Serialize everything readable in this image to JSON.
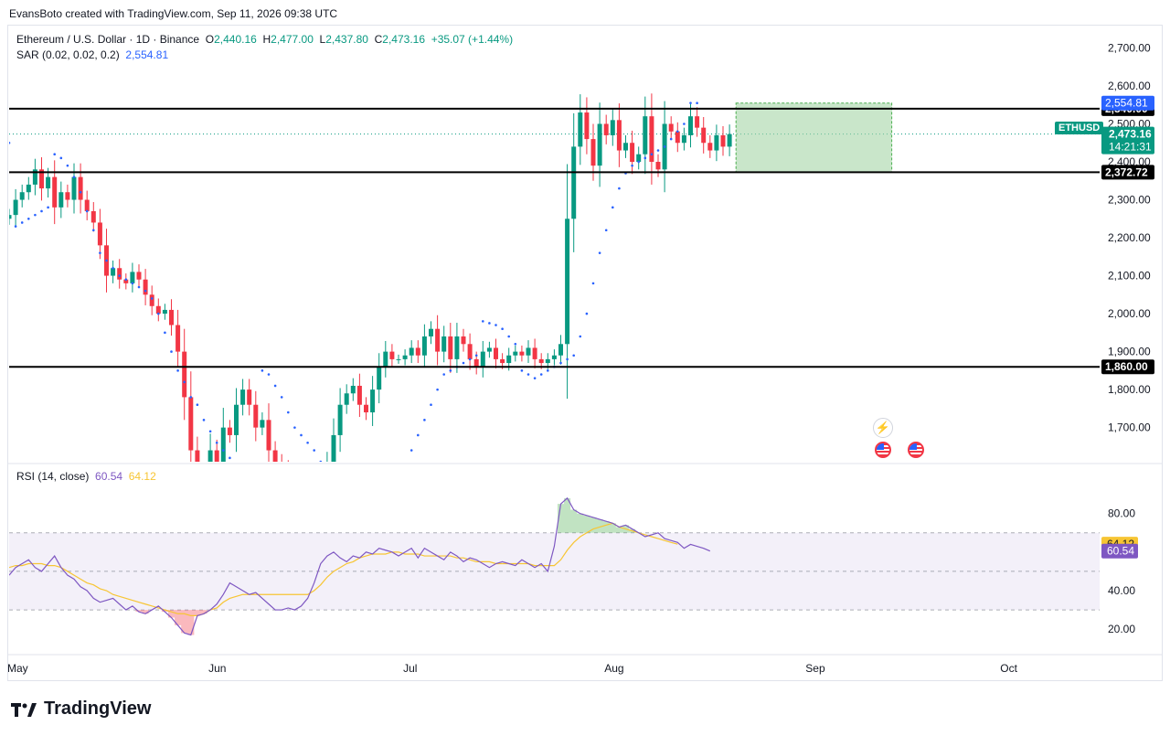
{
  "credit": "EvansBoto created with TradingView.com, Sep 11, 2026 09:38 UTC",
  "legend": {
    "symbol": "Ethereum / U.S. Dollar · 1D · Binance",
    "o_label": "O",
    "o": "2,440.16",
    "h_label": "H",
    "h": "2,477.00",
    "l_label": "L",
    "l": "2,437.80",
    "c_label": "C",
    "c": "2,473.16",
    "change": "+35.07 (+1.44%)",
    "sar_label": "SAR (0.02, 0.02, 0.2)",
    "sar_value": "2,554.81"
  },
  "rsi_legend": {
    "label": "RSI (14, close)",
    "rsi": "60.54",
    "ma": "64.12"
  },
  "ticker": "ETHUSD",
  "countdown": "14:21:31",
  "brand": "TradingView",
  "colors": {
    "up": "#089981",
    "down": "#f23645",
    "sar": "#2962ff",
    "rsi": "#7e57c2",
    "rsi_ma": "#f7c533",
    "zone": "#a5d6a7"
  },
  "chart_data": [
    {
      "type": "candlestick",
      "title": "Ethereum / U.S. Dollar · 1D · Binance",
      "ylim": [
        1610,
        2730
      ],
      "y_ticks": [
        "2,700.00",
        "2,600.00",
        "2,500.00",
        "2,400.00",
        "2,300.00",
        "2,200.00",
        "2,100.00",
        "2,000.00",
        "1,900.00",
        "1,800.00",
        "1,700.00"
      ],
      "y_tick_values": [
        2700,
        2600,
        2500,
        2400,
        2300,
        2200,
        2100,
        2000,
        1900,
        1800,
        1700
      ],
      "x_ticks": [
        "May",
        "Jun",
        "Jul",
        "Aug",
        "Sep",
        "Oct"
      ],
      "x_tick_days": [
        0,
        31,
        61,
        92,
        123,
        153
      ],
      "horizontal_lines": [
        {
          "value": 2540,
          "label": "2,540.00"
        },
        {
          "value": 2372.72,
          "label": "2,372.72"
        },
        {
          "value": 1860,
          "label": "1,860.00"
        }
      ],
      "price_labels": [
        {
          "value": 2554.81,
          "label": "2,554.81",
          "kind": "sar"
        },
        {
          "value": 2473.16,
          "label": "2,473.16",
          "kind": "last"
        }
      ],
      "zone": {
        "from_day": 112,
        "to_day": 136,
        "low": 2372.72,
        "high": 2554.81
      },
      "closes": [
        2260,
        2300,
        2320,
        2340,
        2380,
        2330,
        2360,
        2280,
        2320,
        2300,
        2360,
        2300,
        2270,
        2240,
        2180,
        2100,
        2120,
        2090,
        2080,
        2110,
        2090,
        2050,
        2020,
        2000,
        2010,
        1970,
        1900,
        1780,
        1640,
        1580,
        1560,
        1640,
        1600,
        1700,
        1680,
        1760,
        1800,
        1760,
        1700,
        1720,
        1640,
        1610,
        1590,
        1560,
        1500,
        1560,
        1520,
        1480,
        1540,
        1600,
        1680,
        1760,
        1790,
        1810,
        1760,
        1740,
        1800,
        1860,
        1900,
        1880,
        1880,
        1890,
        1910,
        1890,
        1940,
        1960,
        1900,
        1940,
        1880,
        1940,
        1920,
        1880,
        1860,
        1900,
        1910,
        1880,
        1870,
        1890,
        1900,
        1890,
        1910,
        1880,
        1870,
        1880,
        1890,
        1920,
        2250,
        2440,
        2530,
        2460,
        2390,
        2500,
        2470,
        2510,
        2430,
        2450,
        2400,
        2420,
        2520,
        2400,
        2380,
        2500,
        2480,
        2450,
        2470,
        2520,
        2490,
        2450,
        2430,
        2470,
        2440,
        2473.16
      ],
      "sar": [
        2450,
        2230,
        2240,
        2250,
        2260,
        2270,
        2280,
        2420,
        2410,
        2390,
        2360,
        2320,
        2270,
        2220,
        2160,
        2140,
        2120,
        2100,
        2090,
        2080,
        2070,
        2060,
        2040,
        2000,
        1950,
        1900,
        1850,
        1820,
        1780,
        1760,
        1720,
        1690,
        1660,
        1640,
        1620,
        1600,
        1580,
        1560,
        1540,
        1850,
        1840,
        1810,
        1780,
        1740,
        1700,
        1680,
        1660,
        1640,
        1610,
        1590,
        1570,
        1550,
        1540,
        1530,
        1520,
        1510,
        1500,
        1490,
        1480,
        1470,
        1560,
        1600,
        1640,
        1680,
        1720,
        1760,
        1800,
        1840,
        1850,
        1860,
        1870,
        1880,
        1890,
        1980,
        1975,
        1970,
        1960,
        1940,
        1920,
        1850,
        1840,
        1830,
        1840,
        1850,
        1860,
        1870,
        1880,
        1890,
        1940,
        2000,
        2080,
        2160,
        2220,
        2280,
        2330,
        2370,
        2390,
        2400,
        2410,
        2420,
        2430,
        2440,
        2460,
        2480,
        2500,
        2555,
        2554.81
      ]
    },
    {
      "type": "line",
      "title": "RSI (14, close)",
      "ylim": [
        12,
        96
      ],
      "y_ticks": [
        "80.00",
        "40.00",
        "20.00"
      ],
      "y_tick_values": [
        80,
        40,
        20
      ],
      "bands": {
        "upper": 70,
        "middle": 50,
        "lower": 30
      },
      "series": [
        {
          "name": "RSI",
          "values": [
            48,
            52,
            54,
            56,
            52,
            50,
            54,
            58,
            52,
            48,
            46,
            42,
            40,
            36,
            34,
            35,
            36,
            33,
            30,
            32,
            29,
            28,
            30,
            32,
            29,
            26,
            22,
            18,
            17,
            27,
            28,
            30,
            33,
            38,
            44,
            42,
            40,
            38,
            39,
            36,
            33,
            30,
            30,
            31,
            30,
            32,
            36,
            44,
            54,
            58,
            60,
            57,
            55,
            58,
            57,
            60,
            59,
            62,
            61,
            60,
            58,
            60,
            62,
            57,
            62,
            60,
            58,
            56,
            60,
            58,
            55,
            57,
            56,
            54,
            52,
            54,
            55,
            54,
            53,
            56,
            54,
            52,
            54,
            50,
            63,
            85,
            88,
            82,
            80,
            79,
            78,
            77,
            76,
            75,
            73,
            74,
            72,
            70,
            68,
            69,
            70,
            67,
            66,
            65,
            62,
            64,
            63,
            62,
            60.54
          ]
        },
        {
          "name": "MA",
          "values": [
            52,
            53,
            53,
            54,
            54,
            54,
            53,
            53,
            52,
            50,
            48,
            46,
            44,
            43,
            41,
            40,
            38,
            37,
            36,
            35,
            34,
            33,
            32,
            31,
            30,
            29,
            28,
            28,
            27,
            27,
            28,
            30,
            31,
            34,
            36,
            37,
            38,
            38,
            38,
            38,
            38,
            38,
            38,
            38,
            38,
            38,
            38,
            40,
            43,
            47,
            50,
            52,
            54,
            55,
            57,
            58,
            59,
            59,
            59,
            60,
            60,
            59,
            59,
            59,
            58,
            58,
            58,
            58,
            58,
            57,
            57,
            56,
            55,
            55,
            55,
            54,
            54,
            54,
            54,
            54,
            54,
            53,
            53,
            53,
            53,
            56,
            61,
            65,
            68,
            70,
            72,
            73,
            74,
            75,
            73,
            72,
            71,
            70,
            69,
            68,
            67,
            66,
            65,
            64.12
          ]
        }
      ],
      "value_labels": [
        {
          "value": 64.12,
          "label": "64.12"
        },
        {
          "value": 60.54,
          "label": "60.54"
        }
      ]
    }
  ]
}
